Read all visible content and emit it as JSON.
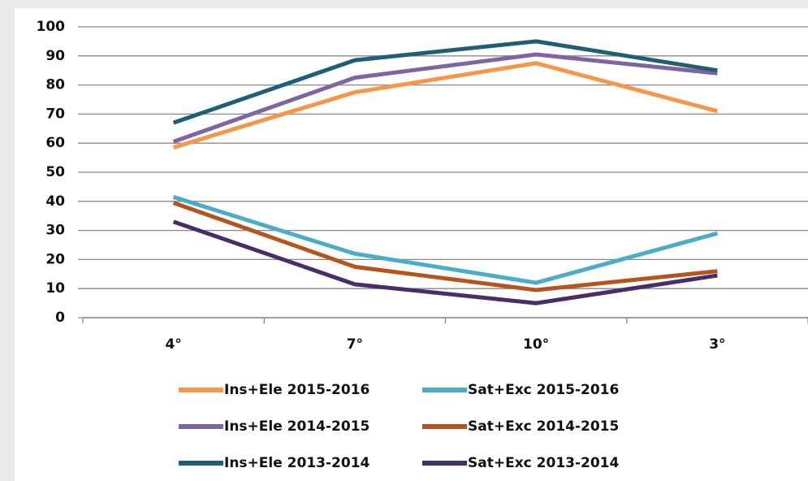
{
  "chart_data": {
    "type": "line",
    "categories": [
      "4°",
      "7°",
      "10°",
      "3°"
    ],
    "series": [
      {
        "name": "Ins+Ele 2015-2016",
        "color": "#f79646",
        "values": [
          58.5,
          77.5,
          87.5,
          71
        ]
      },
      {
        "name": "Sat+Exc 2015-2016",
        "color": "#4bacc6",
        "values": [
          41.5,
          22,
          12,
          29
        ]
      },
      {
        "name": "Ins+Ele 2014-2015",
        "color": "#8064a2",
        "values": [
          60.5,
          82.5,
          90.5,
          84
        ]
      },
      {
        "name": "Sat+Exc 2014-2015",
        "color": "#b5541c",
        "values": [
          39.5,
          17.5,
          9.5,
          16
        ]
      },
      {
        "name": "Ins+Ele 2013-2014",
        "color": "#1f5f73",
        "values": [
          67,
          88.5,
          95,
          85
        ]
      },
      {
        "name": "Sat+Exc 2013-2014",
        "color": "#4b2c6b",
        "values": [
          33,
          11.5,
          5,
          14.5
        ]
      }
    ],
    "ylim": [
      0,
      100
    ],
    "yticks": [
      0,
      10,
      20,
      30,
      40,
      50,
      60,
      70,
      80,
      90,
      100
    ],
    "grid": true
  }
}
